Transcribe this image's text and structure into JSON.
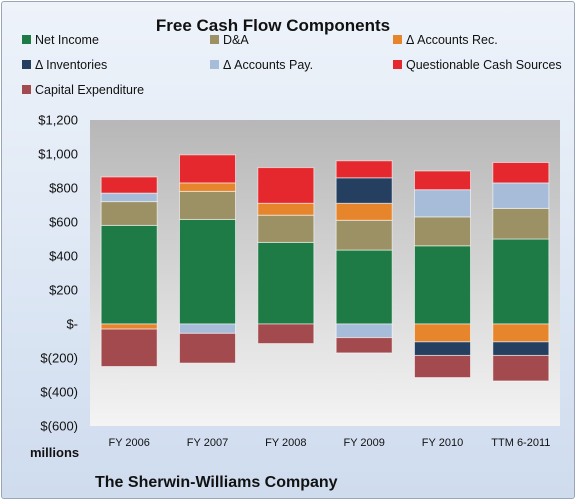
{
  "chart_data": {
    "type": "bar",
    "stacked": true,
    "title": "Free Cash Flow Components",
    "unit_label": "millions",
    "company": "The Sherwin-Williams Company",
    "categories": [
      "FY 2006",
      "FY 2007",
      "FY 2008",
      "FY 2009",
      "FY 2010",
      "TTM 6-2011"
    ],
    "ylim": [
      -600,
      1200
    ],
    "yticks": [
      1200,
      1000,
      800,
      600,
      400,
      200,
      0,
      -200,
      -400,
      -600
    ],
    "ytick_labels": [
      "$1,200",
      "$1,000",
      "$800",
      "$600",
      "$400",
      "$200",
      "$-",
      "$(200)",
      "$(400)",
      "$(600)"
    ],
    "grid": false,
    "legend_position": "top",
    "series": [
      {
        "name": "Net Income",
        "color": "#1e7b45",
        "values": [
          580,
          615,
          480,
          435,
          460,
          500
        ]
      },
      {
        "name": "D&A",
        "color": "#9c9065",
        "values": [
          140,
          165,
          160,
          175,
          170,
          180
        ]
      },
      {
        "name": "Δ Accounts Rec.",
        "color": "#e6852c",
        "values": [
          -30,
          50,
          70,
          100,
          -105,
          -105
        ]
      },
      {
        "name": "Δ Inventories",
        "color": "#243f60",
        "values": [
          0,
          0,
          0,
          150,
          -80,
          -80
        ]
      },
      {
        "name": "Δ Accounts Pay.",
        "color": "#a6bcd8",
        "values": [
          50,
          -55,
          0,
          -80,
          160,
          150
        ]
      },
      {
        "name": "Questionable Cash Sources",
        "color": "#e5282d",
        "values": [
          95,
          165,
          210,
          100,
          110,
          120
        ]
      },
      {
        "name": "Capital Expenditure",
        "color": "#a34a4e",
        "values": [
          -220,
          -175,
          -115,
          -90,
          -130,
          -150
        ]
      }
    ]
  }
}
